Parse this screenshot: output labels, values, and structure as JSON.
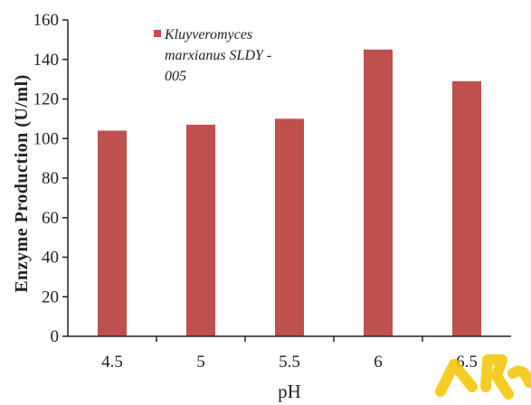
{
  "chart_data": {
    "type": "bar",
    "categories": [
      "4.5",
      "5",
      "5.5",
      "6",
      "6.5"
    ],
    "series": [
      {
        "name_lines": [
          "Kluyveromyces",
          "marxianus SLDY -",
          "005"
        ],
        "values": [
          104,
          107,
          110,
          145,
          129
        ],
        "color": "#c0504d"
      }
    ],
    "xlabel": "pH",
    "ylabel": "Enzyme Production (U/ml)",
    "ylim": [
      0,
      160
    ],
    "yticks": [
      "0",
      "20",
      "40",
      "60",
      "80",
      "100",
      "120",
      "140",
      "160"
    ],
    "grid": false,
    "legend_position": "top-left"
  }
}
